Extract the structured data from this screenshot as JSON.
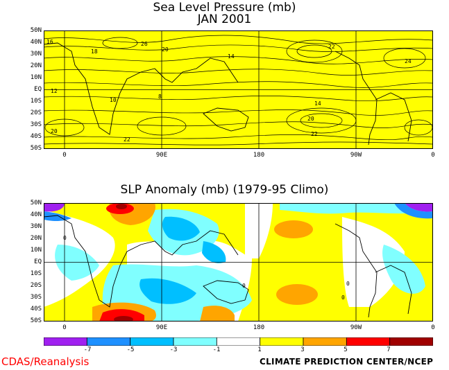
{
  "panel_top": {
    "title": "Sea Level Pressure (mb)",
    "subtitle": "JAN 2001",
    "lat_labels": [
      "50N",
      "40N",
      "30N",
      "20N",
      "10N",
      "EQ",
      "10S",
      "20S",
      "30S",
      "40S",
      "50S"
    ],
    "lon_labels": [
      "0",
      "90E",
      "180",
      "90W",
      "0"
    ],
    "contour_labels": [
      "16",
      "18",
      "20",
      "26",
      "22",
      "14",
      "12",
      "10",
      "8",
      "24"
    ],
    "fill_color": "#ffff00"
  },
  "panel_bottom": {
    "title": "SLP Anomaly (mb) (1979-95 Climo)",
    "lat_labels": [
      "50N",
      "40N",
      "30N",
      "20N",
      "10N",
      "EQ",
      "10S",
      "20S",
      "30S",
      "40S",
      "50S"
    ],
    "lon_labels": [
      "0",
      "90E",
      "180",
      "90W",
      "0"
    ],
    "contour_labels": [
      "0",
      "0",
      "0",
      "0"
    ]
  },
  "colorbar": {
    "tick_labels": [
      "-7",
      "-5",
      "-3",
      "-1",
      "1",
      "3",
      "5",
      "7"
    ],
    "colors": [
      "#a020f0",
      "#1e90ff",
      "#00bfff",
      "#80ffff",
      "#ffffff",
      "#ffff00",
      "#ffa500",
      "#ff0000",
      "#a00000"
    ]
  },
  "footer": {
    "left": "CDAS/Reanalysis",
    "right": "CLIMATE PREDICTION CENTER/NCEP"
  }
}
